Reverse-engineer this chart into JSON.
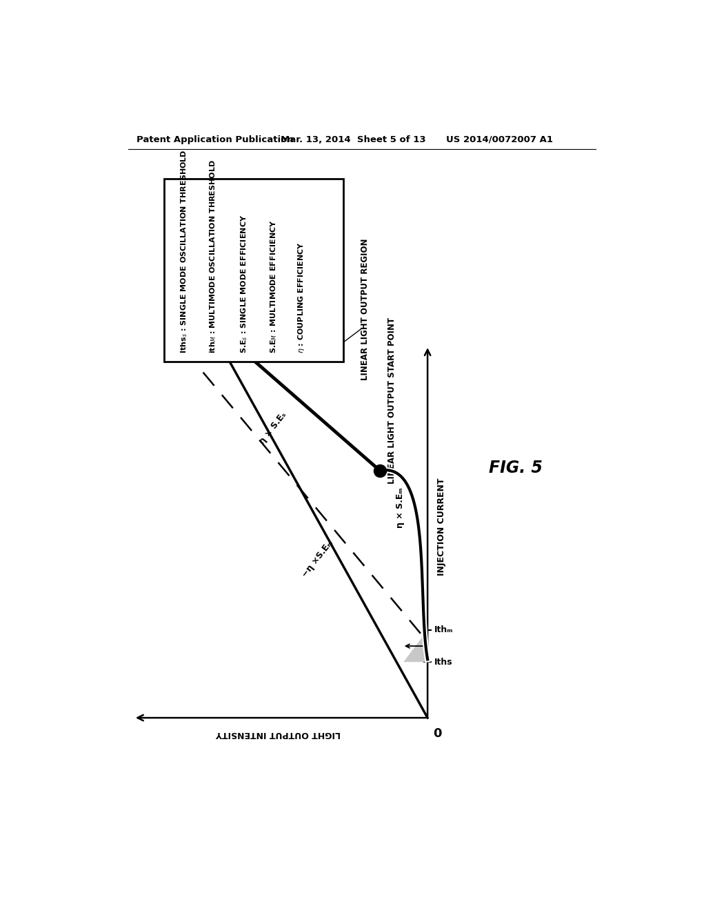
{
  "header_left": "Patent Application Publication",
  "header_mid": "Mar. 13, 2014  Sheet 5 of 13",
  "header_right": "US 2014/0072007 A1",
  "figure_label": "FIG. 5",
  "legend_items": [
    "Ithsₛ : SINGLE MODE OSCILLATION THRESHOLD",
    "ithₘ : MULTIMODE OSCILLATION THRESHOLD",
    "S.Eₛ : SINGLE MODE EFFICIENCY",
    "S.Eₘ : MULTIMODE EFFICIENCY",
    "η : COUPLING EFFICIENCY"
  ],
  "background_color": "#ffffff",
  "text_color": "#000000",
  "ann_region": "LINEAR LIGHT OUTPUT REGION",
  "ann_start": "LINEAR LIGHT OUTPUT START POINT",
  "axis_inj": "INJECTION CURRENT",
  "axis_light": "LIGHT OUTPUT INTENSITY",
  "label_eta_ses": "η × S.Eₛ",
  "label_eta_sem": "η × S.Eₘ",
  "label_neg_eta_sem": "−η ×S.Eₘ",
  "label_iths": "Iths",
  "label_ithm": "Ithₘ"
}
